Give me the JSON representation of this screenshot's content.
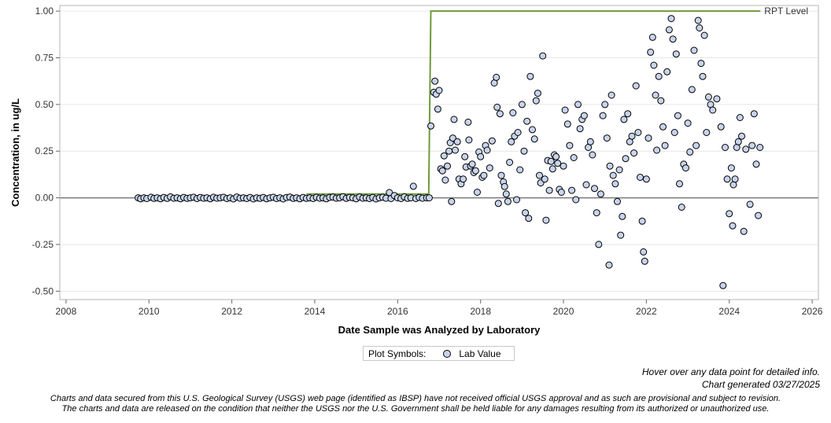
{
  "chart_data": {
    "type": "scatter",
    "ylabel": "Concentration, in ug/L",
    "xlabel": "Date Sample was Analyzed by Laboratory",
    "xlim": [
      2007.85,
      2026.15
    ],
    "ylim": [
      -0.545,
      1.03
    ],
    "xticks": [
      2008,
      2010,
      2012,
      2014,
      2016,
      2018,
      2020,
      2022,
      2024,
      2026
    ],
    "yticks": [
      -0.5,
      -0.25,
      0.0,
      0.25,
      0.5,
      0.75,
      1.0
    ],
    "ytick_labels": [
      "-0.50",
      "-0.25",
      "0.00",
      "0.25",
      "0.50",
      "0.75",
      "1.00"
    ],
    "grid": "horizontal",
    "zero_line": true,
    "rpt_level": {
      "name": "RPT Level",
      "color": "#6e9a3a",
      "points": [
        [
          2013.8,
          0.02
        ],
        [
          2016.75,
          0.02
        ],
        [
          2016.8,
          1.0
        ],
        [
          2024.75,
          1.0
        ]
      ]
    },
    "series": [
      {
        "name": "Lab Value",
        "color": "#c8d4ec",
        "points": [
          [
            2009.74,
            0.0
          ],
          [
            2009.8,
            -0.005
          ],
          [
            2009.88,
            0.0
          ],
          [
            2009.95,
            -0.004
          ],
          [
            2010.05,
            0.003
          ],
          [
            2010.12,
            -0.003
          ],
          [
            2010.2,
            0.0
          ],
          [
            2010.28,
            -0.005
          ],
          [
            2010.36,
            0.002
          ],
          [
            2010.44,
            -0.003
          ],
          [
            2010.52,
            0.005
          ],
          [
            2010.6,
            -0.002
          ],
          [
            2010.68,
            0.0
          ],
          [
            2010.76,
            -0.005
          ],
          [
            2010.84,
            0.002
          ],
          [
            2010.92,
            -0.003
          ],
          [
            2011.0,
            0.0
          ],
          [
            2011.08,
            0.003
          ],
          [
            2011.16,
            -0.004
          ],
          [
            2011.24,
            0.002
          ],
          [
            2011.32,
            -0.002
          ],
          [
            2011.4,
            0.0
          ],
          [
            2011.48,
            -0.005
          ],
          [
            2011.56,
            0.003
          ],
          [
            2011.64,
            -0.002
          ],
          [
            2011.72,
            0.0
          ],
          [
            2011.8,
            0.003
          ],
          [
            2011.88,
            -0.004
          ],
          [
            2011.96,
            0.0
          ],
          [
            2012.04,
            -0.006
          ],
          [
            2012.12,
            0.004
          ],
          [
            2012.2,
            -0.002
          ],
          [
            2012.28,
            0.0
          ],
          [
            2012.36,
            -0.004
          ],
          [
            2012.44,
            0.002
          ],
          [
            2012.52,
            -0.006
          ],
          [
            2012.6,
            0.0
          ],
          [
            2012.68,
            -0.003
          ],
          [
            2012.76,
            0.002
          ],
          [
            2012.84,
            -0.005
          ],
          [
            2012.92,
            0.0
          ],
          [
            2013.0,
            0.003
          ],
          [
            2013.08,
            -0.004
          ],
          [
            2013.16,
            0.0
          ],
          [
            2013.24,
            -0.006
          ],
          [
            2013.32,
            0.002
          ],
          [
            2013.4,
            0.004
          ],
          [
            2013.48,
            -0.003
          ],
          [
            2013.56,
            0.0
          ],
          [
            2013.64,
            -0.005
          ],
          [
            2013.72,
            0.002
          ],
          [
            2013.8,
            -0.003
          ],
          [
            2013.88,
            0.0
          ],
          [
            2013.96,
            -0.004
          ],
          [
            2014.04,
            0.003
          ],
          [
            2014.12,
            -0.002
          ],
          [
            2014.2,
            0.0
          ],
          [
            2014.28,
            -0.005
          ],
          [
            2014.36,
            0.002
          ],
          [
            2014.44,
            0.004
          ],
          [
            2014.52,
            -0.002
          ],
          [
            2014.6,
            0.0
          ],
          [
            2014.68,
            0.006
          ],
          [
            2014.76,
            -0.003
          ],
          [
            2014.84,
            0.002
          ],
          [
            2014.92,
            0.0
          ],
          [
            2015.0,
            -0.005
          ],
          [
            2015.08,
            0.004
          ],
          [
            2015.16,
            -0.002
          ],
          [
            2015.24,
            0.0
          ],
          [
            2015.32,
            -0.004
          ],
          [
            2015.4,
            0.002
          ],
          [
            2015.48,
            -0.006
          ],
          [
            2015.56,
            0.0
          ],
          [
            2015.64,
            0.003
          ],
          [
            2015.72,
            -0.002
          ],
          [
            2015.8,
            0.028
          ],
          [
            2015.84,
            -0.004
          ],
          [
            2015.92,
            0.012
          ],
          [
            2016.0,
            0.0
          ],
          [
            2016.08,
            -0.004
          ],
          [
            2016.16,
            0.005
          ],
          [
            2016.24,
            -0.003
          ],
          [
            2016.32,
            0.0
          ],
          [
            2016.38,
            0.062
          ],
          [
            2016.44,
            -0.004
          ],
          [
            2016.52,
            0.002
          ],
          [
            2016.6,
            -0.002
          ],
          [
            2016.7,
            0.0
          ],
          [
            2016.76,
            0.0
          ],
          [
            2016.8,
            0.385
          ],
          [
            2016.87,
            0.565
          ],
          [
            2016.9,
            0.625
          ],
          [
            2016.93,
            0.555
          ],
          [
            2016.97,
            0.475
          ],
          [
            2017.0,
            0.575
          ],
          [
            2017.04,
            0.155
          ],
          [
            2017.08,
            0.145
          ],
          [
            2017.12,
            0.225
          ],
          [
            2017.15,
            0.095
          ],
          [
            2017.2,
            0.17
          ],
          [
            2017.24,
            0.25
          ],
          [
            2017.27,
            0.295
          ],
          [
            2017.3,
            -0.02
          ],
          [
            2017.33,
            0.32
          ],
          [
            2017.36,
            0.42
          ],
          [
            2017.39,
            0.255
          ],
          [
            2017.44,
            0.3
          ],
          [
            2017.48,
            0.1
          ],
          [
            2017.53,
            0.075
          ],
          [
            2017.58,
            0.1
          ],
          [
            2017.62,
            0.22
          ],
          [
            2017.65,
            0.165
          ],
          [
            2017.7,
            0.405
          ],
          [
            2017.72,
            0.31
          ],
          [
            2017.76,
            0.17
          ],
          [
            2017.8,
            0.18
          ],
          [
            2017.84,
            0.135
          ],
          [
            2017.88,
            0.145
          ],
          [
            2017.92,
            0.03
          ],
          [
            2017.96,
            0.245
          ],
          [
            2018.0,
            0.22
          ],
          [
            2018.04,
            0.11
          ],
          [
            2018.08,
            0.12
          ],
          [
            2018.12,
            0.28
          ],
          [
            2018.16,
            0.255
          ],
          [
            2018.22,
            0.16
          ],
          [
            2018.28,
            0.305
          ],
          [
            2018.33,
            0.615
          ],
          [
            2018.38,
            0.645
          ],
          [
            2018.4,
            0.485
          ],
          [
            2018.43,
            -0.03
          ],
          [
            2018.47,
            0.45
          ],
          [
            2018.5,
            0.12
          ],
          [
            2018.55,
            0.085
          ],
          [
            2018.58,
            0.06
          ],
          [
            2018.62,
            0.02
          ],
          [
            2018.66,
            -0.02
          ],
          [
            2018.7,
            0.19
          ],
          [
            2018.74,
            0.3
          ],
          [
            2018.78,
            0.455
          ],
          [
            2018.82,
            0.33
          ],
          [
            2018.87,
            -0.01
          ],
          [
            2018.9,
            0.35
          ],
          [
            2018.95,
            0.15
          ],
          [
            2019.0,
            0.5
          ],
          [
            2019.05,
            0.25
          ],
          [
            2019.08,
            -0.08
          ],
          [
            2019.12,
            0.41
          ],
          [
            2019.16,
            -0.11
          ],
          [
            2019.2,
            0.65
          ],
          [
            2019.25,
            0.365
          ],
          [
            2019.3,
            0.315
          ],
          [
            2019.34,
            0.52
          ],
          [
            2019.38,
            0.56
          ],
          [
            2019.42,
            0.12
          ],
          [
            2019.45,
            0.08
          ],
          [
            2019.5,
            0.76
          ],
          [
            2019.55,
            0.1
          ],
          [
            2019.58,
            -0.12
          ],
          [
            2019.62,
            0.2
          ],
          [
            2019.66,
            0.04
          ],
          [
            2019.7,
            0.195
          ],
          [
            2019.74,
            0.155
          ],
          [
            2019.78,
            0.23
          ],
          [
            2019.82,
            0.22
          ],
          [
            2019.86,
            0.185
          ],
          [
            2019.9,
            0.045
          ],
          [
            2019.95,
            0.03
          ],
          [
            2020.0,
            0.17
          ],
          [
            2020.04,
            0.47
          ],
          [
            2020.1,
            0.395
          ],
          [
            2020.15,
            0.28
          ],
          [
            2020.2,
            0.04
          ],
          [
            2020.25,
            0.215
          ],
          [
            2020.3,
            -0.01
          ],
          [
            2020.35,
            0.5
          ],
          [
            2020.4,
            0.37
          ],
          [
            2020.45,
            0.42
          ],
          [
            2020.5,
            0.44
          ],
          [
            2020.55,
            0.07
          ],
          [
            2020.6,
            0.27
          ],
          [
            2020.65,
            0.3
          ],
          [
            2020.7,
            0.23
          ],
          [
            2020.75,
            0.05
          ],
          [
            2020.8,
            -0.08
          ],
          [
            2020.85,
            -0.25
          ],
          [
            2020.9,
            0.02
          ],
          [
            2020.95,
            0.44
          ],
          [
            2021.0,
            0.5
          ],
          [
            2021.05,
            0.32
          ],
          [
            2021.1,
            -0.36
          ],
          [
            2021.12,
            0.17
          ],
          [
            2021.16,
            0.55
          ],
          [
            2021.2,
            0.12
          ],
          [
            2021.25,
            0.075
          ],
          [
            2021.3,
            -0.02
          ],
          [
            2021.35,
            0.15
          ],
          [
            2021.38,
            -0.2
          ],
          [
            2021.42,
            -0.1
          ],
          [
            2021.46,
            0.42
          ],
          [
            2021.5,
            0.21
          ],
          [
            2021.55,
            0.45
          ],
          [
            2021.6,
            0.3
          ],
          [
            2021.65,
            0.33
          ],
          [
            2021.7,
            0.24
          ],
          [
            2021.75,
            0.6
          ],
          [
            2021.8,
            0.35
          ],
          [
            2021.85,
            0.11
          ],
          [
            2021.9,
            -0.125
          ],
          [
            2021.93,
            -0.29
          ],
          [
            2021.96,
            -0.34
          ],
          [
            2022.0,
            0.1
          ],
          [
            2022.05,
            0.32
          ],
          [
            2022.1,
            0.78
          ],
          [
            2022.15,
            0.86
          ],
          [
            2022.18,
            0.71
          ],
          [
            2022.22,
            0.55
          ],
          [
            2022.25,
            0.255
          ],
          [
            2022.3,
            0.65
          ],
          [
            2022.35,
            0.52
          ],
          [
            2022.4,
            0.38
          ],
          [
            2022.45,
            0.28
          ],
          [
            2022.5,
            0.675
          ],
          [
            2022.55,
            0.9
          ],
          [
            2022.6,
            0.96
          ],
          [
            2022.64,
            0.85
          ],
          [
            2022.68,
            0.35
          ],
          [
            2022.72,
            0.77
          ],
          [
            2022.76,
            0.44
          ],
          [
            2022.8,
            0.075
          ],
          [
            2022.85,
            -0.05
          ],
          [
            2022.9,
            0.18
          ],
          [
            2022.95,
            0.16
          ],
          [
            2023.0,
            0.4
          ],
          [
            2023.05,
            0.245
          ],
          [
            2023.1,
            0.58
          ],
          [
            2023.15,
            0.79
          ],
          [
            2023.2,
            0.28
          ],
          [
            2023.25,
            0.95
          ],
          [
            2023.28,
            0.91
          ],
          [
            2023.32,
            0.72
          ],
          [
            2023.36,
            0.65
          ],
          [
            2023.4,
            0.87
          ],
          [
            2023.45,
            0.35
          ],
          [
            2023.5,
            0.54
          ],
          [
            2023.55,
            0.5
          ],
          [
            2023.6,
            0.47
          ],
          [
            2023.7,
            0.53
          ],
          [
            2023.8,
            0.38
          ],
          [
            2023.85,
            -0.47
          ],
          [
            2023.9,
            0.27
          ],
          [
            2023.95,
            0.1
          ],
          [
            2024.0,
            -0.085
          ],
          [
            2024.05,
            0.16
          ],
          [
            2024.08,
            -0.15
          ],
          [
            2024.1,
            0.07
          ],
          [
            2024.14,
            0.1
          ],
          [
            2024.18,
            0.27
          ],
          [
            2024.22,
            0.3
          ],
          [
            2024.26,
            0.43
          ],
          [
            2024.3,
            0.33
          ],
          [
            2024.35,
            -0.18
          ],
          [
            2024.4,
            0.26
          ],
          [
            2024.5,
            -0.035
          ],
          [
            2024.55,
            0.28
          ],
          [
            2024.6,
            0.45
          ],
          [
            2024.65,
            0.18
          ],
          [
            2024.7,
            -0.095
          ],
          [
            2024.74,
            0.27
          ]
        ]
      }
    ],
    "legend": {
      "title": "Plot Symbols:",
      "entries": [
        "Lab Value"
      ],
      "placement": "bottom-center"
    }
  },
  "notes": {
    "hover": "Hover over any data point for detailed info.",
    "generated": "Chart generated 03/27/2025",
    "disclaimer_1": "Charts and data secured from this U.S. Geological Survey (USGS) web page (identified as IBSP) have not received official USGS approval and as such are provisional and subject to revision.",
    "disclaimer_2": "The charts and data are released on the condition that neither the USGS nor the U.S. Government shall be held liable for any damages resulting from its authorized or unauthorized use."
  }
}
